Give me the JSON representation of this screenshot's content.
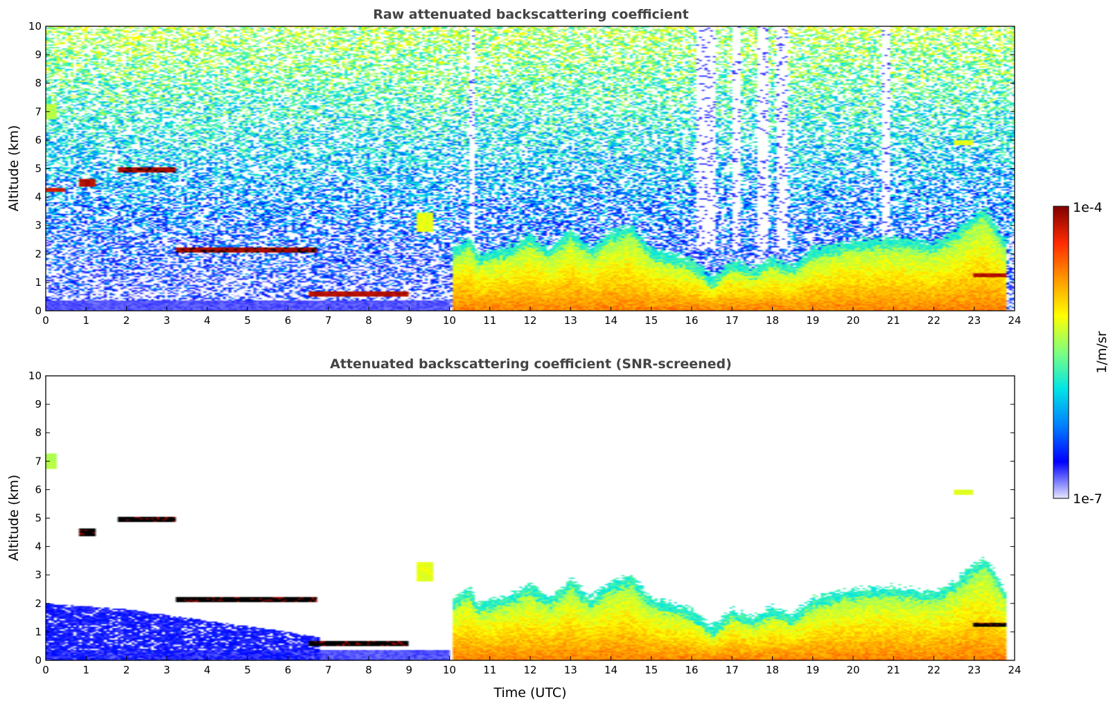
{
  "chart_data": [
    {
      "type": "heatmap",
      "title": "Raw attenuated backscattering coefficient",
      "xlabel": "",
      "ylabel": "Altitude (km)",
      "xlim": [
        0,
        24
      ],
      "ylim": [
        0,
        10
      ],
      "x_ticks": [
        "0",
        "1",
        "2",
        "3",
        "4",
        "5",
        "6",
        "7",
        "8",
        "9",
        "10",
        "11",
        "12",
        "13",
        "14",
        "15",
        "16",
        "17",
        "18",
        "19",
        "20",
        "21",
        "22",
        "23",
        "24"
      ],
      "y_ticks": [
        "0",
        "1",
        "2",
        "3",
        "4",
        "5",
        "6",
        "7",
        "8",
        "9",
        "10"
      ],
      "noise_background": true,
      "features": [
        {
          "kind": "surface",
          "x": [
            0,
            10
          ],
          "top": 0.35,
          "value": 0.08
        },
        {
          "kind": "boundary_layer",
          "x": [
            10.1,
            23.8
          ],
          "top_profile": [
            [
              10.1,
              2.2
            ],
            [
              10.5,
              2.6
            ],
            [
              10.7,
              2.0
            ],
            [
              11.5,
              2.3
            ],
            [
              12,
              2.7
            ],
            [
              12.5,
              2.2
            ],
            [
              13,
              2.9
            ],
            [
              13.5,
              2.2
            ],
            [
              14,
              2.8
            ],
            [
              14.5,
              3.0
            ],
            [
              15,
              2.2
            ],
            [
              16,
              1.8
            ],
            [
              16.5,
              1.2
            ],
            [
              17,
              1.8
            ],
            [
              17.5,
              1.5
            ],
            [
              18,
              1.9
            ],
            [
              18.5,
              1.6
            ],
            [
              19,
              2.2
            ],
            [
              20,
              2.5
            ],
            [
              21,
              2.6
            ],
            [
              22,
              2.4
            ],
            [
              22.5,
              2.8
            ],
            [
              23,
              3.4
            ],
            [
              23.3,
              3.6
            ],
            [
              23.8,
              2.4
            ]
          ],
          "value": 0.78
        },
        {
          "kind": "cloud",
          "x": [
            3.2,
            6.7
          ],
          "alt": 2.15,
          "thick": 0.18,
          "value": 0.97
        },
        {
          "kind": "cloud",
          "x": [
            1.8,
            3.2
          ],
          "alt": 4.95,
          "thick": 0.18,
          "value": 0.97
        },
        {
          "kind": "cloud",
          "x": [
            0.8,
            1.25
          ],
          "alt": 4.5,
          "thick": 0.3,
          "value": 0.95
        },
        {
          "kind": "cloud",
          "x": [
            0.0,
            0.45
          ],
          "alt": 4.25,
          "thick": 0.12,
          "value": 0.92
        },
        {
          "kind": "cloud",
          "x": [
            6.5,
            9.0
          ],
          "alt": 0.6,
          "thick": 0.2,
          "value": 0.95
        },
        {
          "kind": "cloud",
          "x": [
            23.0,
            23.8
          ],
          "alt": 1.25,
          "thick": 0.15,
          "value": 0.95
        },
        {
          "kind": "aerosol",
          "x": [
            0.0,
            0.25
          ],
          "alt": 7.0,
          "thick": 0.5,
          "value": 0.55
        },
        {
          "kind": "aerosol",
          "x": [
            9.2,
            9.6
          ],
          "alt": 3.1,
          "thick": 0.7,
          "value": 0.6
        },
        {
          "kind": "aerosol",
          "x": [
            22.5,
            23.0
          ],
          "alt": 5.9,
          "thick": 0.2,
          "value": 0.6
        }
      ],
      "missing_columns": [
        [
          10.5,
          10.6
        ],
        [
          16.1,
          16.6
        ],
        [
          17.0,
          17.2
        ],
        [
          17.6,
          17.9
        ],
        [
          18.1,
          18.4
        ],
        [
          20.7,
          20.9
        ]
      ]
    },
    {
      "type": "heatmap",
      "title": "Attenuated backscattering coefficient (SNR-screened)",
      "xlabel": "Time (UTC)",
      "ylabel": "Altitude (km)",
      "xlim": [
        0,
        24
      ],
      "ylim": [
        0,
        10
      ],
      "x_ticks": [
        "0",
        "1",
        "2",
        "3",
        "4",
        "5",
        "6",
        "7",
        "8",
        "9",
        "10",
        "11",
        "12",
        "13",
        "14",
        "15",
        "16",
        "17",
        "18",
        "19",
        "20",
        "21",
        "22",
        "23",
        "24"
      ],
      "y_ticks": [
        "0",
        "1",
        "2",
        "3",
        "4",
        "5",
        "6",
        "7",
        "8",
        "9",
        "10"
      ],
      "noise_background": false,
      "features": [
        {
          "kind": "surface",
          "x": [
            0,
            10
          ],
          "top": 0.35,
          "value": 0.08
        },
        {
          "kind": "lower_layer",
          "x": [
            0,
            6.8
          ],
          "top_profile": [
            [
              0,
              2.0
            ],
            [
              2,
              1.8
            ],
            [
              4,
              1.4
            ],
            [
              6,
              1.0
            ],
            [
              6.8,
              0.8
            ]
          ],
          "value": 0.12
        },
        {
          "kind": "boundary_layer",
          "x": [
            10.1,
            23.8
          ],
          "top_profile": [
            [
              10.1,
              2.2
            ],
            [
              10.5,
              2.6
            ],
            [
              10.7,
              2.0
            ],
            [
              11.5,
              2.3
            ],
            [
              12,
              2.7
            ],
            [
              12.5,
              2.2
            ],
            [
              13,
              2.9
            ],
            [
              13.5,
              2.2
            ],
            [
              14,
              2.8
            ],
            [
              14.5,
              3.0
            ],
            [
              15,
              2.2
            ],
            [
              16,
              1.8
            ],
            [
              16.5,
              1.2
            ],
            [
              17,
              1.8
            ],
            [
              17.5,
              1.5
            ],
            [
              18,
              1.9
            ],
            [
              18.5,
              1.6
            ],
            [
              19,
              2.2
            ],
            [
              20,
              2.5
            ],
            [
              21,
              2.6
            ],
            [
              22,
              2.4
            ],
            [
              22.5,
              2.8
            ],
            [
              23,
              3.4
            ],
            [
              23.3,
              3.6
            ],
            [
              23.8,
              2.4
            ]
          ],
          "value": 0.78
        },
        {
          "kind": "cloud",
          "x": [
            3.2,
            6.7
          ],
          "alt": 2.15,
          "thick": 0.18,
          "value": 1.0
        },
        {
          "kind": "cloud",
          "x": [
            1.8,
            3.2
          ],
          "alt": 4.95,
          "thick": 0.18,
          "value": 1.0
        },
        {
          "kind": "cloud",
          "x": [
            0.8,
            1.25
          ],
          "alt": 4.5,
          "thick": 0.3,
          "value": 1.0
        },
        {
          "kind": "cloud",
          "x": [
            6.5,
            9.0
          ],
          "alt": 0.6,
          "thick": 0.2,
          "value": 1.0
        },
        {
          "kind": "cloud",
          "x": [
            23.0,
            23.8
          ],
          "alt": 1.25,
          "thick": 0.15,
          "value": 1.0
        },
        {
          "kind": "aerosol",
          "x": [
            0.0,
            0.25
          ],
          "alt": 7.0,
          "thick": 0.5,
          "value": 0.55
        },
        {
          "kind": "aerosol",
          "x": [
            9.2,
            9.6
          ],
          "alt": 3.1,
          "thick": 0.7,
          "value": 0.6
        },
        {
          "kind": "aerosol",
          "x": [
            22.5,
            23.0
          ],
          "alt": 5.9,
          "thick": 0.2,
          "value": 0.6
        }
      ]
    }
  ],
  "colorbar": {
    "max_label": "1e-4",
    "min_label": "1e-7",
    "unit_label": "1/m/sr",
    "stops": [
      "#e6e6ff",
      "#0000ff",
      "#0080ff",
      "#00e5e5",
      "#7fff7f",
      "#ffff00",
      "#ff9900",
      "#ff2a00",
      "#800000"
    ]
  }
}
